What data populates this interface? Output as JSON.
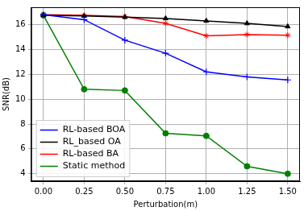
{
  "chart_data": {
    "type": "line",
    "x_label": "Perturbation(m)",
    "y_label": "SNR(dB)",
    "x": [
      0,
      0.25,
      0.5,
      0.75,
      1.0,
      1.25,
      1.5
    ],
    "series": [
      {
        "name": "RL-based BOA",
        "color": "#0000ff",
        "marker": "plus",
        "values": [
          16.8,
          16.4,
          14.75,
          13.7,
          12.2,
          11.8,
          11.55
        ]
      },
      {
        "name": "RL_based OA",
        "color": "#000000",
        "marker": "triangle",
        "values": [
          16.75,
          16.7,
          16.6,
          16.5,
          16.3,
          16.1,
          15.85
        ]
      },
      {
        "name": "RL-based BA",
        "color": "#ff0000",
        "marker": "star",
        "values": [
          16.8,
          16.75,
          16.65,
          16.1,
          15.1,
          15.2,
          15.15
        ]
      },
      {
        "name": "Static method",
        "color": "#008000",
        "marker": "circle",
        "values": [
          16.75,
          10.8,
          10.7,
          7.25,
          7.05,
          4.6,
          4.0
        ]
      }
    ],
    "xlim": [
      -0.075,
      1.575
    ],
    "xticks": [
      {
        "value": 0,
        "label": "0.00"
      },
      {
        "value": 0.25,
        "label": "0.25"
      },
      {
        "value": 0.5,
        "label": "0.50"
      },
      {
        "value": 0.75,
        "label": "0.75"
      },
      {
        "value": 1.0,
        "label": "1.00"
      },
      {
        "value": 1.25,
        "label": "1.25"
      },
      {
        "value": 1.5,
        "label": "1.50"
      }
    ],
    "ylim": [
      3.4,
      17.4
    ],
    "yticks": [
      4,
      6,
      8,
      10,
      12,
      14,
      16
    ],
    "grid": true,
    "legend": "lower left"
  }
}
